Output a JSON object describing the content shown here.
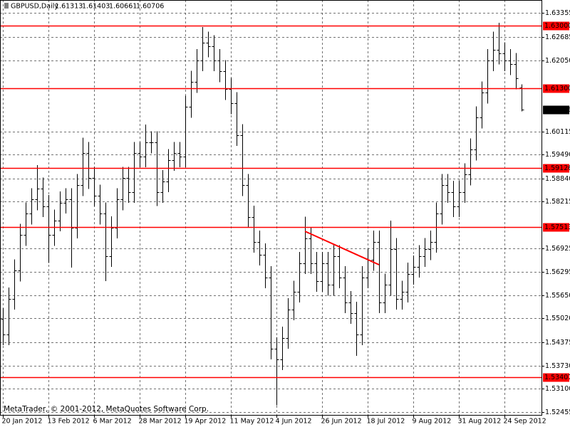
{
  "chart_data": {
    "type": "ohlc",
    "symbol": "GBPUSD,Daily",
    "footer": "MetaTrader, © 2001-2012, MetaQuotes Software Corp.",
    "color": "#000000",
    "level_color": "#ff0000",
    "grid": true,
    "categories": [
      "20 Jan 2012",
      null,
      null,
      null,
      null,
      null,
      null,
      null,
      "13 Feb 2012",
      null,
      null,
      null,
      null,
      null,
      null,
      null,
      "6 Mar 2012",
      null,
      null,
      null,
      null,
      null,
      null,
      null,
      "28 Mar 2012",
      null,
      null,
      null,
      null,
      null,
      null,
      null,
      "19 Apr 2012",
      null,
      null,
      null,
      null,
      null,
      null,
      null,
      "11 May 2012",
      null,
      null,
      null,
      null,
      null,
      null,
      null,
      "4 Jun 2012",
      null,
      null,
      null,
      null,
      null,
      null,
      null,
      "26 Jun 2012",
      null,
      null,
      null,
      null,
      null,
      null,
      null,
      "18 Jul 2012",
      null,
      null,
      null,
      null,
      null,
      null,
      null,
      "9 Aug 2012",
      null,
      null,
      null,
      null,
      null,
      null,
      null,
      "31 Aug 2012",
      null,
      null,
      null,
      null,
      null,
      null,
      null,
      "24 Sep 2012",
      null,
      null,
      null
    ],
    "open": [
      1.55,
      1.54586,
      1.55556,
      1.56332,
      1.57302,
      1.57884,
      1.58272,
      1.58563,
      1.58078,
      1.57302,
      1.5769,
      1.58175,
      1.58272,
      1.57496,
      1.5866,
      1.59533,
      1.58854,
      1.58369,
      1.57884,
      1.5672,
      1.57496,
      1.58272,
      1.58854,
      1.58466,
      1.59533,
      1.59436,
      1.59824,
      1.59824,
      1.58466,
      1.58757,
      1.59339,
      1.59533,
      1.59436,
      1.60794,
      1.61473,
      1.62055,
      1.6254,
      1.62443,
      1.62055,
      1.61764,
      1.61279,
      1.60891,
      1.60018,
      1.5866,
      1.57787,
      1.57108,
      1.56759,
      1.56138,
      1.54198,
      1.53907,
      1.54489,
      1.55265,
      1.5575,
      1.56526,
      1.57205,
      1.56526,
      1.56041,
      1.56526,
      1.55944,
      1.5672,
      1.56138,
      1.55459,
      1.55168,
      1.54586,
      1.56138,
      1.56623,
      1.57108,
      1.55459,
      1.55944,
      1.56914,
      1.55556,
      1.5575,
      1.56235,
      1.56429,
      1.5672,
      1.56914,
      1.57108,
      1.57884,
      1.5866,
      1.58466,
      1.58078,
      1.58466,
      1.58951,
      1.5963,
      1.60503,
      1.61182,
      1.62055,
      1.62346,
      1.62249,
      1.62055,
      1.61958,
      1.61313
    ],
    "high": [
      1.553,
      1.5586,
      1.5663,
      1.576,
      1.5818,
      1.5857,
      1.592,
      1.5886,
      1.5838,
      1.5799,
      1.5848,
      1.5857,
      1.5857,
      1.5896,
      1.5995,
      1.5983,
      1.5915,
      1.5867,
      1.5818,
      1.578,
      1.5857,
      1.5915,
      1.5915,
      1.5983,
      1.5983,
      1.6031,
      1.6012,
      1.6012,
      1.5906,
      1.5964,
      1.5983,
      1.5983,
      1.6109,
      1.6177,
      1.6236,
      1.6297,
      1.6284,
      1.6274,
      1.6236,
      1.6206,
      1.6158,
      1.6119,
      1.6032,
      1.5896,
      1.5809,
      1.5741,
      1.5706,
      1.5644,
      1.545,
      1.5479,
      1.5557,
      1.5605,
      1.5683,
      1.5779,
      1.5751,
      1.5683,
      1.5683,
      1.5683,
      1.5702,
      1.5702,
      1.5644,
      1.5576,
      1.5547,
      1.5644,
      1.5692,
      1.5741,
      1.5741,
      1.5624,
      1.5769,
      1.5721,
      1.5605,
      1.5654,
      1.5673,
      1.5702,
      1.5721,
      1.5741,
      1.5818,
      1.5896,
      1.5896,
      1.5877,
      1.5877,
      1.5925,
      1.5993,
      1.608,
      1.6148,
      1.6236,
      1.6284,
      1.6308,
      1.6255,
      1.6236,
      1.6226,
      1.61403
    ],
    "low": [
      1.5429,
      1.5429,
      1.5526,
      1.5603,
      1.57,
      1.5758,
      1.5797,
      1.5778,
      1.5653,
      1.57,
      1.5739,
      1.5788,
      1.564,
      1.572,
      1.5836,
      1.5855,
      1.5807,
      1.5758,
      1.5604,
      1.5642,
      1.572,
      1.5797,
      1.5817,
      1.5817,
      1.5914,
      1.5914,
      1.5952,
      1.5808,
      1.5817,
      1.5846,
      1.5904,
      1.5914,
      1.5914,
      1.6049,
      1.6117,
      1.6176,
      1.6214,
      1.6176,
      1.6146,
      1.6098,
      1.6059,
      1.5972,
      1.5836,
      1.5749,
      1.5681,
      1.5646,
      1.5584,
      1.539,
      1.5265,
      1.5361,
      1.5419,
      1.5497,
      1.5545,
      1.5623,
      1.5623,
      1.5574,
      1.5574,
      1.5564,
      1.5564,
      1.5584,
      1.5516,
      1.5487,
      1.54,
      1.5429,
      1.5584,
      1.5632,
      1.5516,
      1.5516,
      1.5564,
      1.5526,
      1.5526,
      1.5545,
      1.5594,
      1.5613,
      1.5642,
      1.5661,
      1.5681,
      1.5758,
      1.5817,
      1.5778,
      1.5778,
      1.5817,
      1.5865,
      1.5933,
      1.602,
      1.6088,
      1.6176,
      1.6195,
      1.6176,
      1.6166,
      1.6127,
      1.60661
    ],
    "close": [
      1.54586,
      1.55556,
      1.56332,
      1.57302,
      1.57884,
      1.58272,
      1.58563,
      1.58078,
      1.57302,
      1.5769,
      1.58175,
      1.58272,
      1.57496,
      1.5866,
      1.59533,
      1.58854,
      1.58369,
      1.57884,
      1.5672,
      1.57496,
      1.58272,
      1.58854,
      1.58466,
      1.59533,
      1.59436,
      1.59824,
      1.59824,
      1.58466,
      1.58757,
      1.59339,
      1.59533,
      1.59436,
      1.60794,
      1.61473,
      1.62055,
      1.6254,
      1.62443,
      1.62055,
      1.61764,
      1.61279,
      1.60891,
      1.60018,
      1.5866,
      1.57787,
      1.57108,
      1.56759,
      1.56138,
      1.54198,
      1.53907,
      1.54489,
      1.55265,
      1.5575,
      1.56526,
      1.57205,
      1.56526,
      1.56041,
      1.56526,
      1.55944,
      1.5672,
      1.56138,
      1.55459,
      1.55168,
      1.54586,
      1.56138,
      1.56623,
      1.57108,
      1.55459,
      1.55944,
      1.56914,
      1.55556,
      1.5575,
      1.56235,
      1.56429,
      1.5672,
      1.56914,
      1.57108,
      1.57884,
      1.5866,
      1.58466,
      1.58078,
      1.58466,
      1.58951,
      1.5963,
      1.60503,
      1.61182,
      1.62055,
      1.62346,
      1.62249,
      1.62055,
      1.61958,
      1.6157,
      1.60706
    ],
    "ylim": [
      1.52386,
      1.63704
    ],
    "yticks": [
      1.63355,
      1.62685,
      {
        "value": 1.6205,
        "label": "1.62050"
      },
      1.60115,
      {
        "value": 1.5949,
        "label": "1.59490"
      },
      {
        "value": 1.5884,
        "label": "1.58840"
      },
      1.58215,
      1.56925,
      1.56295,
      {
        "value": 1.5565,
        "label": "1.55650"
      },
      {
        "value": 1.5502,
        "label": "1.55020"
      },
      1.54375,
      {
        "value": 1.5373,
        "label": "1.53730"
      },
      {
        "value": 1.531,
        "label": "1.53100"
      },
      1.52455
    ],
    "levels": [
      {
        "value": 1.63,
        "label": "1.63000"
      },
      {
        "value": 1.613,
        "label": "1.61300"
      },
      1.59126,
      1.57513,
      1.53407
    ],
    "trendline": {
      "x": [
        53,
        66
      ],
      "y": [
        1.57395,
        1.56482
      ]
    }
  }
}
